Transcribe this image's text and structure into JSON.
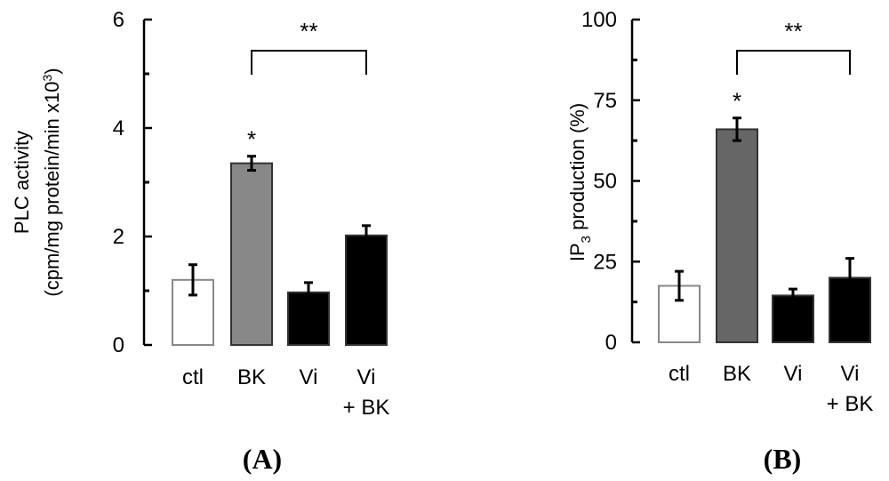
{
  "chart_data": [
    {
      "type": "bar",
      "panel_label": "(A)",
      "ylabel": "PLC activity",
      "ylabel2": "(cpm/mg protein/min x10",
      "ylabel2_sup": "3",
      "ylabel2_end": ")",
      "categories": [
        "ctl",
        "BK",
        "Vi",
        "Vi"
      ],
      "category_line2": [
        "",
        "",
        "",
        "+ BK"
      ],
      "values": [
        1.2,
        3.35,
        0.97,
        2.02
      ],
      "errors": [
        0.28,
        0.13,
        0.18,
        0.18
      ],
      "bar_colors": [
        "#ffffff",
        "#888888",
        "#000000",
        "#000000"
      ],
      "ylim": [
        0,
        6
      ],
      "yticks": [
        0,
        2,
        4,
        6
      ],
      "bar_star": "*",
      "bracket_label": "**"
    },
    {
      "type": "bar",
      "panel_label": "(B)",
      "ylabel_main": "IP",
      "ylabel_sub": "3",
      "ylabel_rest": " production (%)",
      "categories": [
        "ctl",
        "BK",
        "Vi",
        "Vi"
      ],
      "category_line2": [
        "",
        "",
        "",
        "+ BK"
      ],
      "values": [
        17.5,
        66,
        14.5,
        20
      ],
      "errors": [
        4.5,
        3.5,
        2,
        6
      ],
      "bar_colors": [
        "#ffffff",
        "#666666",
        "#000000",
        "#000000"
      ],
      "ylim": [
        0,
        100
      ],
      "yticks": [
        0,
        25,
        50,
        75,
        100
      ],
      "bar_star": "*",
      "bracket_label": "**"
    }
  ]
}
